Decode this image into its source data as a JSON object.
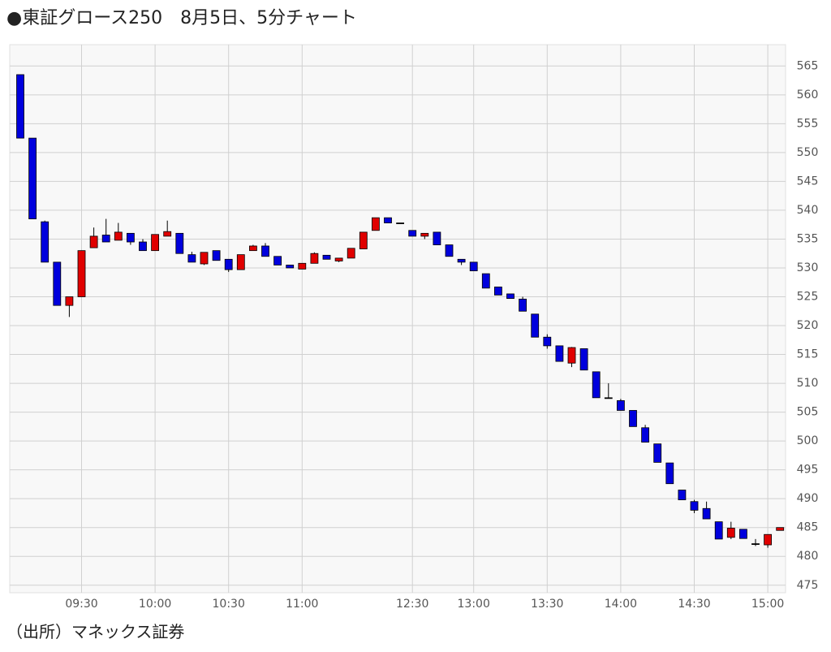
{
  "chart_data": {
    "type": "candlestick",
    "title": "●東証グロース250　8月5日、5分チャート",
    "source": "（出所）マネックス証券",
    "categories": [
      null,
      null,
      null,
      null,
      null,
      "09:30",
      null,
      null,
      null,
      null,
      null,
      "10:00",
      null,
      null,
      null,
      null,
      null,
      "10:30",
      null,
      null,
      null,
      null,
      null,
      "11:00",
      null,
      null,
      null,
      null,
      null,
      null,
      null,
      null,
      "12:30",
      null,
      null,
      null,
      null,
      "13:00",
      null,
      null,
      null,
      null,
      null,
      "13:30",
      null,
      null,
      null,
      null,
      null,
      "14:00",
      null,
      null,
      null,
      null,
      null,
      "14:30",
      null,
      null,
      null,
      null,
      null,
      "15:00",
      null
    ],
    "open": [
      563.5,
      552.5,
      538,
      531,
      523.5,
      525,
      533.5,
      535.7,
      534.8,
      536,
      534.5,
      533,
      535.5,
      536,
      532.3,
      530.7,
      533,
      531.5,
      529.7,
      533,
      533.8,
      532,
      530.5,
      529.8,
      530.8,
      532.2,
      531.2,
      531.7,
      533.3,
      536.5,
      538.7,
      537.8,
      536.5,
      535.5,
      536.2,
      534,
      531.5,
      531,
      529,
      526.7,
      525.5,
      524.6,
      522,
      518,
      516.5,
      513.5,
      516,
      512,
      507.5,
      507,
      505.3,
      502.3,
      499.5,
      496.2,
      491.5,
      489.5,
      488.3,
      486,
      483.3,
      484.7,
      482.2,
      482,
      484.5
    ],
    "high": [
      563.5,
      552.5,
      538.2,
      531,
      525,
      533,
      537,
      538.5,
      537.8,
      536,
      535,
      535.8,
      538.2,
      536,
      532.8,
      532.7,
      533,
      531.5,
      532.3,
      534,
      534.3,
      532,
      530.5,
      530.8,
      532.7,
      532.2,
      531.7,
      533.4,
      536.2,
      538.7,
      538.7,
      537.8,
      536.5,
      536,
      536.2,
      534,
      531.5,
      531,
      529,
      526.7,
      525.5,
      525,
      522,
      518.5,
      516.5,
      516.3,
      516,
      512,
      510,
      507.3,
      505.3,
      502.8,
      499.5,
      496.2,
      491.5,
      489.8,
      489.5,
      486,
      486,
      484.7,
      483,
      483.8,
      485
    ],
    "low": [
      552.5,
      538.5,
      531,
      523.5,
      521.5,
      525,
      533.5,
      534.5,
      534.8,
      534,
      533,
      533,
      535.5,
      532.5,
      531,
      530.5,
      531.3,
      529.3,
      529.7,
      533,
      532,
      530.5,
      530,
      529.8,
      530.8,
      531.5,
      531,
      531.7,
      533.3,
      536.5,
      537.8,
      537.8,
      535.5,
      535,
      534,
      532,
      530.5,
      529.5,
      526.5,
      525.3,
      524.7,
      522.5,
      518,
      516,
      513.8,
      512.8,
      512.3,
      507.5,
      507.5,
      505.3,
      502.5,
      499.8,
      496.3,
      492.6,
      489.8,
      487.5,
      486.5,
      483,
      483,
      483.1,
      481.8,
      481.5,
      484.5
    ],
    "close": [
      552.5,
      538.5,
      531,
      523.5,
      525,
      533,
      535.5,
      534.5,
      536.2,
      534.5,
      533,
      535.8,
      536.3,
      532.5,
      531,
      532.7,
      531.3,
      529.7,
      532.3,
      533.8,
      532,
      530.5,
      530,
      530.8,
      532.5,
      531.5,
      531.7,
      533.4,
      536.2,
      538.7,
      537.8,
      537.8,
      535.5,
      536,
      534,
      532,
      531,
      529.5,
      526.5,
      525.3,
      524.7,
      522.5,
      518,
      516.5,
      513.8,
      516.2,
      512.3,
      507.5,
      507.5,
      505.3,
      502.5,
      499.8,
      496.3,
      492.6,
      489.8,
      488,
      486.5,
      483,
      484.9,
      483.1,
      482.2,
      483.8,
      485
    ],
    "up_color": "#e00000",
    "down_color": "#0000dd",
    "doji_color": "#000000",
    "ylim": [
      473.7,
      568.7
    ],
    "yticks": [
      475,
      480,
      485,
      490,
      495,
      500,
      505,
      510,
      515,
      520,
      525,
      530,
      535,
      540,
      545,
      550,
      555,
      560,
      565
    ],
    "grid": true
  }
}
